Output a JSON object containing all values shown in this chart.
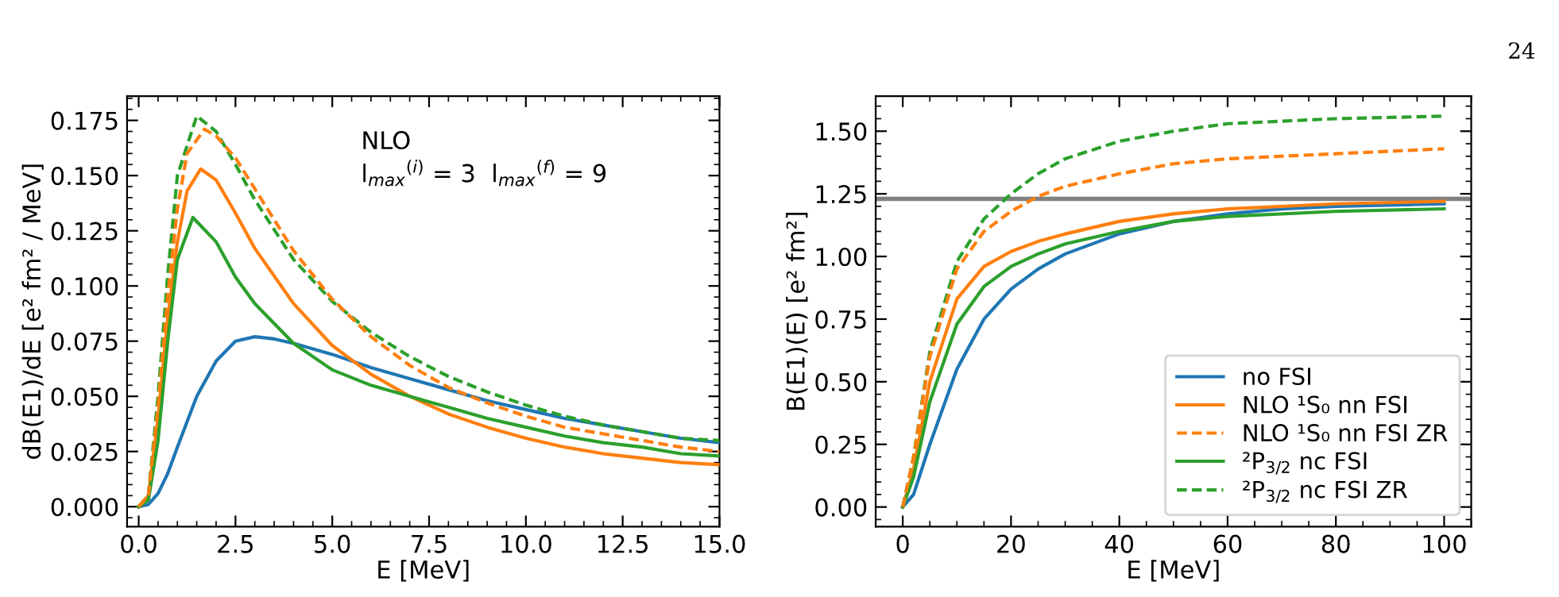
{
  "chart_data": [
    {
      "type": "line",
      "xlabel": "E [MeV]",
      "ylabel": "dB(E1)/dE [e² fm² / MeV]",
      "annotations": [
        "NLO\nl$_{max}$$^{(i)}$ = 3  l$_{max}$$^{(f)}$ = 9",
        "24"
      ],
      "xlim": [
        -0.3,
        15
      ],
      "ylim": [
        -0.009,
        0.186
      ],
      "xticks": [
        {
          "value": 0,
          "label": "0.0"
        },
        {
          "value": 2.5,
          "label": "2.5"
        },
        {
          "value": 5,
          "label": "5.0"
        },
        {
          "value": 7.5,
          "label": "7.5"
        },
        {
          "value": 10,
          "label": "10.0"
        },
        {
          "value": 12.5,
          "label": "12.5"
        },
        {
          "value": 15,
          "label": "15.0"
        }
      ],
      "yticks": [
        {
          "value": 0,
          "label": "0.000"
        },
        {
          "value": 0.025,
          "label": "0.025"
        },
        {
          "value": 0.05,
          "label": "0.050"
        },
        {
          "value": 0.075,
          "label": "0.075"
        },
        {
          "value": 0.1,
          "label": "0.100"
        },
        {
          "value": 0.125,
          "label": "0.125"
        },
        {
          "value": 0.15,
          "label": "0.150"
        },
        {
          "value": 0.175,
          "label": "0.175"
        }
      ],
      "grid": false,
      "legend": false,
      "marker": "none",
      "series": [
        {
          "color": "#1f77b4",
          "line_style": "solid",
          "x": [
            0,
            0.25,
            0.5,
            0.75,
            1,
            1.5,
            2,
            2.5,
            3,
            3.5,
            4,
            5,
            6,
            7,
            8,
            9,
            10,
            11,
            12,
            13,
            14,
            15
          ],
          "values": [
            0,
            0.001,
            0.006,
            0.015,
            0.027,
            0.05,
            0.066,
            0.075,
            0.077,
            0.076,
            0.074,
            0.069,
            0.063,
            0.058,
            0.053,
            0.048,
            0.044,
            0.04,
            0.037,
            0.034,
            0.031,
            0.029
          ]
        },
        {
          "color": "#ff7f0e",
          "line_style": "solid",
          "x": [
            0,
            0.25,
            0.5,
            0.75,
            1,
            1.25,
            1.6,
            2,
            2.5,
            3,
            4,
            5,
            6,
            7,
            8,
            9,
            10,
            11,
            12,
            13,
            14,
            15
          ],
          "values": [
            0,
            0.005,
            0.04,
            0.085,
            0.12,
            0.143,
            0.153,
            0.148,
            0.133,
            0.117,
            0.092,
            0.073,
            0.06,
            0.05,
            0.042,
            0.036,
            0.031,
            0.027,
            0.024,
            0.022,
            0.02,
            0.019
          ]
        },
        {
          "color": "#ff7f0e",
          "line_style": "dashed",
          "x": [
            0,
            0.25,
            0.5,
            0.75,
            1,
            1.25,
            1.7,
            2,
            2.5,
            3,
            4,
            5,
            6,
            7,
            8,
            9,
            10,
            11,
            12,
            13,
            14,
            15
          ],
          "values": [
            0,
            0.005,
            0.045,
            0.095,
            0.135,
            0.16,
            0.171,
            0.168,
            0.158,
            0.144,
            0.116,
            0.094,
            0.077,
            0.064,
            0.054,
            0.047,
            0.041,
            0.036,
            0.033,
            0.03,
            0.027,
            0.025
          ]
        },
        {
          "color": "#2ca02c",
          "line_style": "solid",
          "x": [
            0,
            0.25,
            0.5,
            0.75,
            1,
            1.4,
            2,
            2.5,
            3,
            4,
            5,
            6,
            7,
            8,
            9,
            10,
            11,
            12,
            13,
            14,
            15
          ],
          "values": [
            0,
            0.003,
            0.03,
            0.075,
            0.112,
            0.131,
            0.12,
            0.104,
            0.092,
            0.074,
            0.062,
            0.055,
            0.05,
            0.045,
            0.04,
            0.036,
            0.032,
            0.029,
            0.027,
            0.024,
            0.023
          ]
        },
        {
          "color": "#2ca02c",
          "line_style": "dashed",
          "x": [
            0,
            0.25,
            0.5,
            0.75,
            1,
            1.5,
            2,
            2.5,
            3,
            4,
            5,
            6,
            7,
            8,
            9,
            10,
            11,
            12,
            13,
            14,
            15
          ],
          "values": [
            0,
            0.005,
            0.05,
            0.105,
            0.15,
            0.177,
            0.17,
            0.155,
            0.139,
            0.112,
            0.093,
            0.079,
            0.068,
            0.059,
            0.052,
            0.046,
            0.041,
            0.037,
            0.034,
            0.031,
            0.03
          ]
        }
      ]
    },
    {
      "type": "line",
      "xlabel": "E [MeV]",
      "ylabel": "B(E1)(E) [e² fm²]",
      "xlim": [
        -5,
        105
      ],
      "ylim": [
        -0.078,
        1.64
      ],
      "xticks": [
        0,
        20,
        40,
        60,
        80,
        100
      ],
      "yticks": [
        {
          "value": 0,
          "label": "0.00"
        },
        {
          "value": 0.25,
          "label": "0.25"
        },
        {
          "value": 0.5,
          "label": "0.50"
        },
        {
          "value": 0.75,
          "label": "0.75"
        },
        {
          "value": 1,
          "label": "1.00"
        },
        {
          "value": 1.25,
          "label": "1.25"
        },
        {
          "value": 1.5,
          "label": "1.50"
        }
      ],
      "grid": false,
      "legend": "bottom right",
      "marker": "none",
      "ref_lines": [
        {
          "axis": "y",
          "value": 1.23,
          "color": "#808080",
          "line_style": "solid"
        }
      ],
      "series": [
        {
          "name": "no FSI",
          "color": "#1f77b4",
          "line_style": "solid",
          "x": [
            0,
            2,
            5,
            10,
            15,
            20,
            25,
            30,
            40,
            50,
            60,
            70,
            80,
            100
          ],
          "values": [
            0,
            0.05,
            0.25,
            0.55,
            0.75,
            0.87,
            0.95,
            1.01,
            1.09,
            1.14,
            1.17,
            1.19,
            1.2,
            1.21
          ]
        },
        {
          "name": "NLO ¹S₀ nn FSI",
          "color": "#ff7f0e",
          "line_style": "solid",
          "x": [
            0,
            2,
            5,
            10,
            15,
            20,
            25,
            30,
            40,
            50,
            60,
            80,
            100
          ],
          "values": [
            0,
            0.15,
            0.5,
            0.83,
            0.96,
            1.02,
            1.06,
            1.09,
            1.14,
            1.17,
            1.19,
            1.21,
            1.22
          ]
        },
        {
          "name": "NLO ¹S₀ nn FSI ZR",
          "color": "#ff7f0e",
          "line_style": "dashed",
          "x": [
            0,
            2,
            5,
            10,
            15,
            20,
            25,
            30,
            40,
            50,
            60,
            80,
            100
          ],
          "values": [
            0,
            0.2,
            0.6,
            0.95,
            1.1,
            1.18,
            1.24,
            1.28,
            1.33,
            1.37,
            1.39,
            1.41,
            1.43
          ]
        },
        {
          "name": "²P$_{3/2}$ nc FSI",
          "color": "#2ca02c",
          "line_style": "solid",
          "x": [
            0,
            2,
            5,
            10,
            15,
            20,
            25,
            30,
            40,
            50,
            60,
            80,
            100
          ],
          "values": [
            0,
            0.12,
            0.42,
            0.73,
            0.88,
            0.96,
            1.01,
            1.05,
            1.1,
            1.14,
            1.16,
            1.18,
            1.19
          ]
        },
        {
          "name": "²P$_{3/2}$ nc FSI ZR",
          "color": "#2ca02c",
          "line_style": "dashed",
          "x": [
            0,
            2,
            5,
            10,
            15,
            20,
            25,
            30,
            40,
            50,
            60,
            80,
            100
          ],
          "values": [
            0,
            0.2,
            0.62,
            0.98,
            1.15,
            1.25,
            1.33,
            1.39,
            1.46,
            1.5,
            1.53,
            1.55,
            1.56
          ]
        }
      ]
    }
  ]
}
